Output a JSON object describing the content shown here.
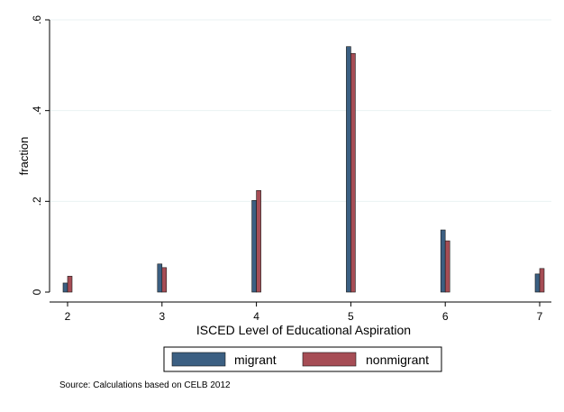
{
  "chart_data": {
    "type": "bar",
    "x": [
      2,
      3,
      4,
      5,
      6,
      7
    ],
    "xlabel": "ISCED Level of Educational Aspiration",
    "ylabel": "fraction",
    "xlim": [
      2,
      7
    ],
    "ylim": [
      0,
      0.6
    ],
    "x_ticks": [
      "2",
      "3",
      "4",
      "5",
      "6",
      "7"
    ],
    "y_ticks": [
      {
        "value": 0,
        "label": "0"
      },
      {
        "value": 0.2,
        "label": ".2"
      },
      {
        "value": 0.4,
        "label": ".4"
      },
      {
        "value": 0.6,
        "label": ".6"
      }
    ],
    "grid": true,
    "legend_position": "bottom",
    "series": [
      {
        "name": "migrant",
        "color": "#3b5f82",
        "values": [
          0.02,
          0.062,
          0.202,
          0.541,
          0.137,
          0.04
        ]
      },
      {
        "name": "nonmigrant",
        "color": "#a64d55",
        "values": [
          0.035,
          0.054,
          0.224,
          0.526,
          0.113,
          0.052
        ]
      }
    ]
  },
  "note": "Source: Calculations based on CELB 2012"
}
